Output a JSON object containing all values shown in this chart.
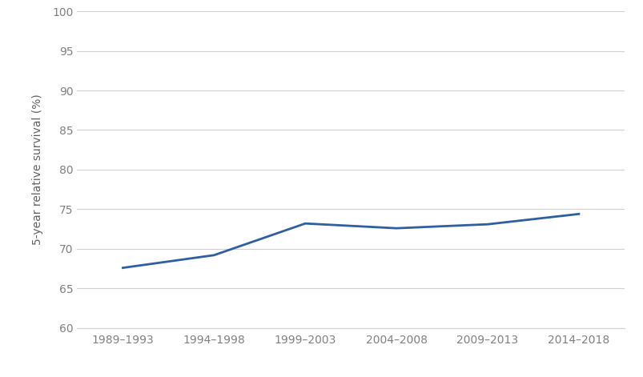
{
  "categories": [
    "1989–1993",
    "1994–1998",
    "1999–2003",
    "2004–2008",
    "2009–2013",
    "2014–2018"
  ],
  "values": [
    67.6,
    69.2,
    73.2,
    72.6,
    73.1,
    74.4
  ],
  "line_color": "#2e5fa3",
  "line_width": 2.0,
  "ylabel": "5-year relative survival (%)",
  "ylim": [
    60,
    100
  ],
  "yticks": [
    60,
    65,
    70,
    75,
    80,
    85,
    90,
    95,
    100
  ],
  "background_color": "#ffffff",
  "grid_color": "#d0d0d0",
  "tick_label_color": "#808080",
  "axis_label_color": "#606060",
  "font_size_ticks": 10,
  "font_size_ylabel": 10
}
